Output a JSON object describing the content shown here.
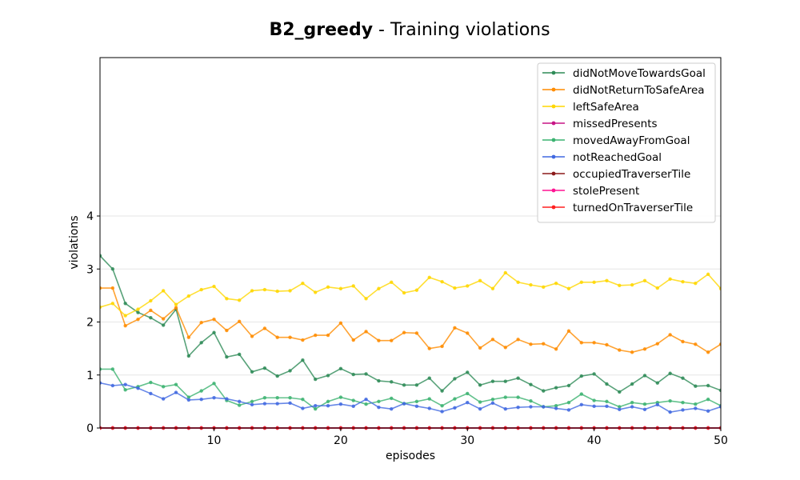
{
  "chart_data": {
    "type": "line",
    "title": {
      "bold": "B2_greedy",
      "rest": " - Training violations"
    },
    "xlabel": "episodes",
    "ylabel": "violations",
    "xlim": [
      1,
      50
    ],
    "ylim": [
      0,
      4
    ],
    "xticks": [
      10,
      20,
      30,
      40,
      50
    ],
    "yticks": [
      0,
      1,
      2,
      3,
      4
    ],
    "grid": "horizontal",
    "legend_position": "top-right",
    "x": [
      1,
      2,
      3,
      4,
      5,
      6,
      7,
      8,
      9,
      10,
      11,
      12,
      13,
      14,
      15,
      16,
      17,
      18,
      19,
      20,
      21,
      22,
      23,
      24,
      25,
      26,
      27,
      28,
      29,
      30,
      31,
      32,
      33,
      34,
      35,
      36,
      37,
      38,
      39,
      40,
      41,
      42,
      43,
      44,
      45,
      46,
      47,
      48,
      49,
      50
    ],
    "series": [
      {
        "name": "didNotMoveTowardsGoal",
        "color": "#2e8b57",
        "values": [
          3.25,
          3.0,
          2.35,
          2.18,
          2.08,
          1.94,
          2.24,
          1.36,
          1.61,
          1.8,
          1.34,
          1.39,
          1.06,
          1.13,
          0.98,
          1.08,
          1.28,
          0.92,
          0.99,
          1.12,
          1.01,
          1.02,
          0.89,
          0.87,
          0.81,
          0.81,
          0.94,
          0.7,
          0.93,
          1.05,
          0.81,
          0.88,
          0.88,
          0.94,
          0.82,
          0.7,
          0.76,
          0.8,
          0.98,
          1.02,
          0.83,
          0.68,
          0.83,
          0.99,
          0.85,
          1.03,
          0.94,
          0.79,
          0.8,
          0.71
        ]
      },
      {
        "name": "didNotReturnToSafeArea",
        "color": "#ff8c00",
        "values": [
          2.64,
          2.64,
          1.93,
          2.05,
          2.22,
          2.06,
          2.27,
          1.71,
          1.99,
          2.05,
          1.84,
          2.01,
          1.73,
          1.88,
          1.71,
          1.71,
          1.66,
          1.75,
          1.75,
          1.98,
          1.66,
          1.82,
          1.65,
          1.65,
          1.8,
          1.79,
          1.5,
          1.54,
          1.89,
          1.79,
          1.51,
          1.67,
          1.52,
          1.67,
          1.58,
          1.59,
          1.49,
          1.83,
          1.61,
          1.61,
          1.57,
          1.47,
          1.43,
          1.49,
          1.59,
          1.76,
          1.63,
          1.58,
          1.43,
          1.58
        ]
      },
      {
        "name": "leftSafeArea",
        "color": "#ffd700",
        "values": [
          2.28,
          2.35,
          2.12,
          2.24,
          2.4,
          2.59,
          2.33,
          2.49,
          2.61,
          2.67,
          2.44,
          2.41,
          2.59,
          2.61,
          2.58,
          2.59,
          2.73,
          2.56,
          2.66,
          2.63,
          2.68,
          2.44,
          2.63,
          2.75,
          2.55,
          2.6,
          2.84,
          2.76,
          2.64,
          2.68,
          2.78,
          2.63,
          2.93,
          2.75,
          2.7,
          2.66,
          2.73,
          2.63,
          2.75,
          2.75,
          2.78,
          2.69,
          2.7,
          2.78,
          2.64,
          2.81,
          2.76,
          2.73,
          2.9,
          2.63
        ]
      },
      {
        "name": "missedPresents",
        "color": "#c71585",
        "values": [
          0,
          0,
          0,
          0,
          0,
          0,
          0,
          0,
          0,
          0,
          0,
          0,
          0,
          0,
          0,
          0,
          0,
          0,
          0,
          0,
          0,
          0,
          0,
          0,
          0,
          0,
          0,
          0,
          0,
          0,
          0,
          0,
          0,
          0,
          0,
          0,
          0,
          0,
          0,
          0,
          0,
          0,
          0,
          0,
          0,
          0,
          0,
          0,
          0,
          0
        ]
      },
      {
        "name": "movedAwayFromGoal",
        "color": "#3cb371",
        "values": [
          1.11,
          1.11,
          0.72,
          0.78,
          0.86,
          0.78,
          0.82,
          0.58,
          0.7,
          0.84,
          0.52,
          0.43,
          0.5,
          0.57,
          0.57,
          0.57,
          0.54,
          0.36,
          0.5,
          0.58,
          0.52,
          0.45,
          0.5,
          0.56,
          0.46,
          0.5,
          0.55,
          0.42,
          0.55,
          0.65,
          0.49,
          0.54,
          0.58,
          0.58,
          0.51,
          0.4,
          0.42,
          0.48,
          0.64,
          0.52,
          0.5,
          0.4,
          0.48,
          0.45,
          0.48,
          0.51,
          0.48,
          0.45,
          0.54,
          0.42
        ]
      },
      {
        "name": "notReachedGoal",
        "color": "#4169e1",
        "values": [
          0.85,
          0.8,
          0.82,
          0.75,
          0.65,
          0.55,
          0.67,
          0.53,
          0.54,
          0.57,
          0.55,
          0.5,
          0.44,
          0.46,
          0.46,
          0.47,
          0.37,
          0.42,
          0.42,
          0.45,
          0.41,
          0.54,
          0.39,
          0.36,
          0.46,
          0.41,
          0.37,
          0.31,
          0.38,
          0.48,
          0.36,
          0.47,
          0.36,
          0.39,
          0.4,
          0.4,
          0.37,
          0.34,
          0.44,
          0.41,
          0.41,
          0.35,
          0.4,
          0.35,
          0.44,
          0.3,
          0.34,
          0.37,
          0.32,
          0.4
        ]
      },
      {
        "name": "occupiedTraverserTile",
        "color": "#8b1a1a",
        "values": [
          0,
          0,
          0,
          0,
          0,
          0,
          0,
          0,
          0,
          0,
          0,
          0,
          0,
          0,
          0,
          0,
          0,
          0,
          0,
          0,
          0,
          0,
          0,
          0,
          0,
          0,
          0,
          0,
          0,
          0,
          0,
          0,
          0,
          0,
          0,
          0,
          0,
          0,
          0,
          0,
          0,
          0,
          0,
          0,
          0,
          0,
          0,
          0,
          0,
          0
        ]
      },
      {
        "name": "stolePresent",
        "color": "#ff1493",
        "values": [
          0,
          0,
          0,
          0,
          0,
          0,
          0,
          0,
          0,
          0,
          0,
          0,
          0,
          0,
          0,
          0,
          0,
          0,
          0,
          0,
          0,
          0,
          0,
          0,
          0,
          0,
          0,
          0,
          0,
          0,
          0,
          0,
          0,
          0,
          0,
          0,
          0,
          0,
          0,
          0,
          0,
          0,
          0,
          0,
          0,
          0,
          0,
          0,
          0,
          0
        ]
      },
      {
        "name": "turnedOnTraverserTile",
        "color": "#ff2020",
        "values": [
          0,
          0,
          0,
          0,
          0,
          0,
          0,
          0,
          0,
          0,
          0,
          0,
          0,
          0,
          0,
          0,
          0,
          0,
          0,
          0,
          0,
          0,
          0,
          0,
          0,
          0,
          0,
          0,
          0,
          0,
          0,
          0,
          0,
          0,
          0,
          0,
          0,
          0,
          0,
          0,
          0,
          0,
          0,
          0,
          0,
          0,
          0,
          0,
          0,
          0
        ]
      }
    ]
  }
}
